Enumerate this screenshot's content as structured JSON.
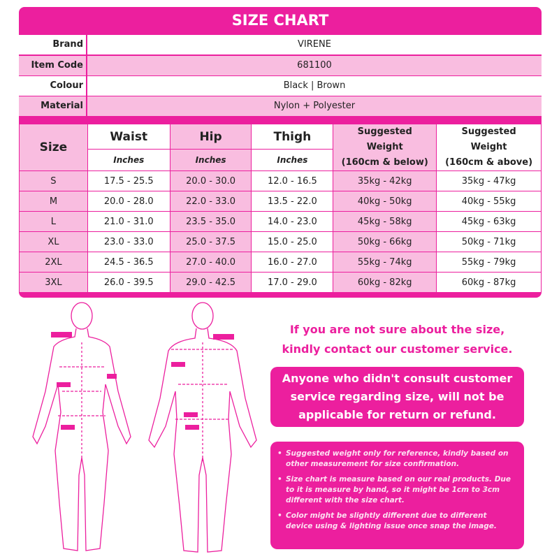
{
  "title": "SIZE CHART",
  "info": [
    {
      "label": "Brand",
      "value": "VIRENE"
    },
    {
      "label": "Item Code",
      "value": "681100"
    },
    {
      "label": "Colour",
      "value": "Black | Brown"
    },
    {
      "label": "Material",
      "value": "Nylon + Polyester"
    }
  ],
  "table": {
    "headers": {
      "size": "Size",
      "waist": "Waist",
      "hip": "Hip",
      "thigh": "Thigh",
      "unit": "Inches",
      "w1": [
        "Suggested",
        "Weight",
        "(160cm & below)"
      ],
      "w2": [
        "Suggested",
        "Weight",
        "(160cm & above)"
      ]
    },
    "rows": [
      [
        "S",
        "17.5 - 25.5",
        "20.0 - 30.0",
        "12.0 - 16.5",
        "35kg - 42kg",
        "35kg - 47kg"
      ],
      [
        "M",
        "20.0 - 28.0",
        "22.0 - 33.0",
        "13.5 - 22.0",
        "40kg - 50kg",
        "40kg - 55kg"
      ],
      [
        "L",
        "21.0 - 31.0",
        "23.5 - 35.0",
        "14.0 - 23.0",
        "45kg - 58kg",
        "45kg - 63kg"
      ],
      [
        "XL",
        "23.0 - 33.0",
        "25.0 - 37.5",
        "15.0 - 25.0",
        "50kg - 66kg",
        "50kg - 71kg"
      ],
      [
        "2XL",
        "24.5 - 36.5",
        "27.0 - 40.0",
        "16.0 - 27.0",
        "55kg - 74kg",
        "55kg - 79kg"
      ],
      [
        "3XL",
        "26.0 - 39.5",
        "29.0 - 42.5",
        "17.0 - 29.0",
        "60kg - 82kg",
        "60kg - 87kg"
      ]
    ]
  },
  "notice": [
    "If you are not sure about the size,",
    "kindly contact our customer service."
  ],
  "warning": [
    "Anyone who didn't consult customer",
    "service regarding size, will not be",
    "applicable for return or refund."
  ],
  "notes": [
    "Suggested weight only for reference, kindly based on other measurement for size confirmation.",
    "Size chart is measure based on our real products. Due to it is measure by hand, so it might be 1cm to 3cm different with the size chart.",
    "Color might be slightly different due to different device using & lighting issue once snap the image."
  ],
  "colors": {
    "magenta": "#ec1f9e",
    "pink": "#f9bde0"
  }
}
